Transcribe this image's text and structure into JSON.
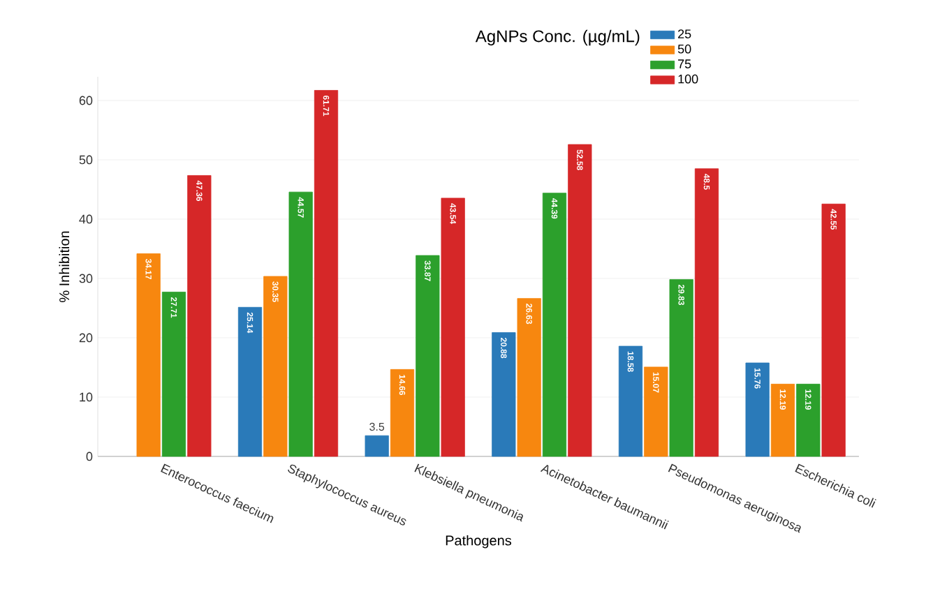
{
  "chart_data": {
    "type": "bar",
    "legend_title": "AgNPs Conc. (µg/mL)",
    "xlabel": "Pathogens",
    "ylabel": "% Inhibition",
    "categories": [
      "Enterococcus faecium",
      "Staphylococcus aureus",
      "Klebsiella pneumonia",
      "Acinetobacter baumannii",
      "Pseudomonas aeruginosa",
      "Escherichia coli"
    ],
    "series": [
      {
        "name": "25",
        "color": "#2a7ab9",
        "values": [
          null,
          25.14,
          3.5,
          20.88,
          18.58,
          15.76
        ]
      },
      {
        "name": "50",
        "color": "#f7870f",
        "values": [
          34.17,
          30.35,
          14.66,
          26.63,
          15.07,
          12.19
        ]
      },
      {
        "name": "75",
        "color": "#2ca02c",
        "values": [
          27.71,
          44.57,
          33.87,
          44.39,
          29.83,
          12.19
        ]
      },
      {
        "name": "100",
        "color": "#d62728",
        "values": [
          47.36,
          61.71,
          43.54,
          52.58,
          48.5,
          42.55
        ]
      }
    ],
    "ylim": [
      0,
      64
    ],
    "yticks": [
      0,
      10,
      20,
      30,
      40,
      50,
      60
    ],
    "grid": "y",
    "legend": "top right",
    "data_labels": true
  }
}
